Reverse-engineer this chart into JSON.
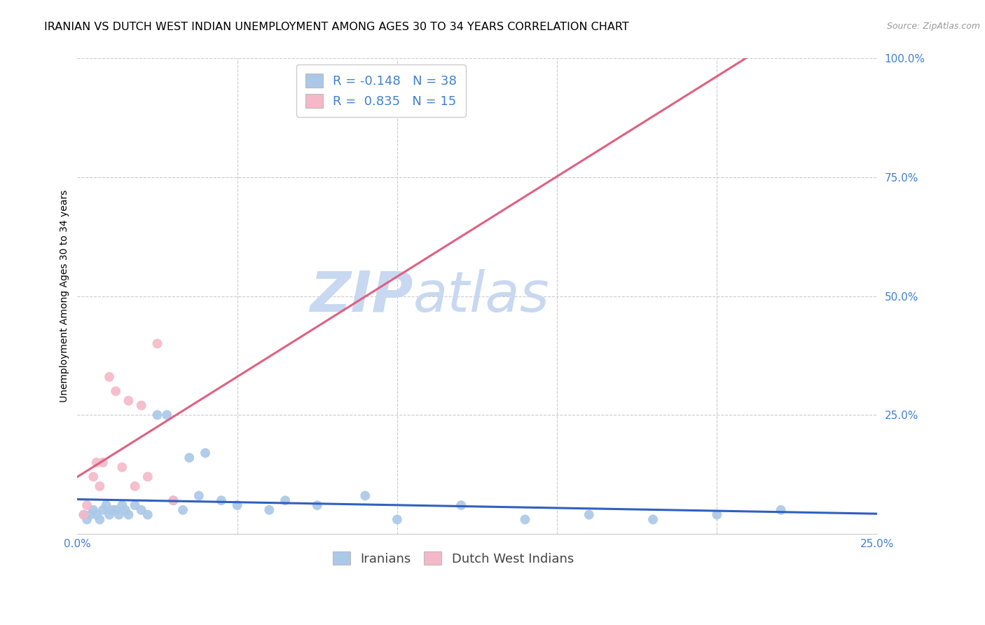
{
  "title": "IRANIAN VS DUTCH WEST INDIAN UNEMPLOYMENT AMONG AGES 30 TO 34 YEARS CORRELATION CHART",
  "source": "Source: ZipAtlas.com",
  "ylabel": "Unemployment Among Ages 30 to 34 years",
  "xlim": [
    0.0,
    0.25
  ],
  "ylim": [
    0.0,
    1.0
  ],
  "iranians_x": [
    0.002,
    0.003,
    0.004,
    0.005,
    0.006,
    0.007,
    0.008,
    0.009,
    0.01,
    0.011,
    0.012,
    0.013,
    0.014,
    0.015,
    0.016,
    0.018,
    0.02,
    0.022,
    0.025,
    0.028,
    0.03,
    0.033,
    0.035,
    0.038,
    0.04,
    0.045,
    0.05,
    0.06,
    0.065,
    0.075,
    0.09,
    0.1,
    0.12,
    0.14,
    0.16,
    0.18,
    0.2,
    0.22
  ],
  "iranians_y": [
    0.04,
    0.03,
    0.04,
    0.05,
    0.04,
    0.03,
    0.05,
    0.06,
    0.04,
    0.05,
    0.05,
    0.04,
    0.06,
    0.05,
    0.04,
    0.06,
    0.05,
    0.04,
    0.25,
    0.25,
    0.07,
    0.05,
    0.16,
    0.08,
    0.17,
    0.07,
    0.06,
    0.05,
    0.07,
    0.06,
    0.08,
    0.03,
    0.06,
    0.03,
    0.04,
    0.03,
    0.04,
    0.05
  ],
  "dutch_x": [
    0.002,
    0.003,
    0.005,
    0.006,
    0.007,
    0.008,
    0.01,
    0.012,
    0.014,
    0.016,
    0.018,
    0.02,
    0.022,
    0.025,
    0.03
  ],
  "dutch_y": [
    0.04,
    0.06,
    0.12,
    0.15,
    0.1,
    0.15,
    0.33,
    0.3,
    0.14,
    0.28,
    0.1,
    0.27,
    0.12,
    0.4,
    0.07
  ],
  "iranian_R": -0.148,
  "iranian_N": 38,
  "dutch_R": 0.835,
  "dutch_N": 15,
  "iranian_color": "#aac8e8",
  "dutch_color": "#f4b8c8",
  "iranian_line_color": "#3060c0",
  "dutch_line_color": "#e06080",
  "scatter_size": 100,
  "background_color": "#ffffff",
  "grid_color": "#cccccc",
  "watermark_zip_color": "#c8d8f0",
  "watermark_atlas_color": "#c8d8f0",
  "title_fontsize": 11.5,
  "label_fontsize": 10,
  "tick_fontsize": 11,
  "legend_fontsize": 13,
  "tick_label_color": "#4080d0"
}
